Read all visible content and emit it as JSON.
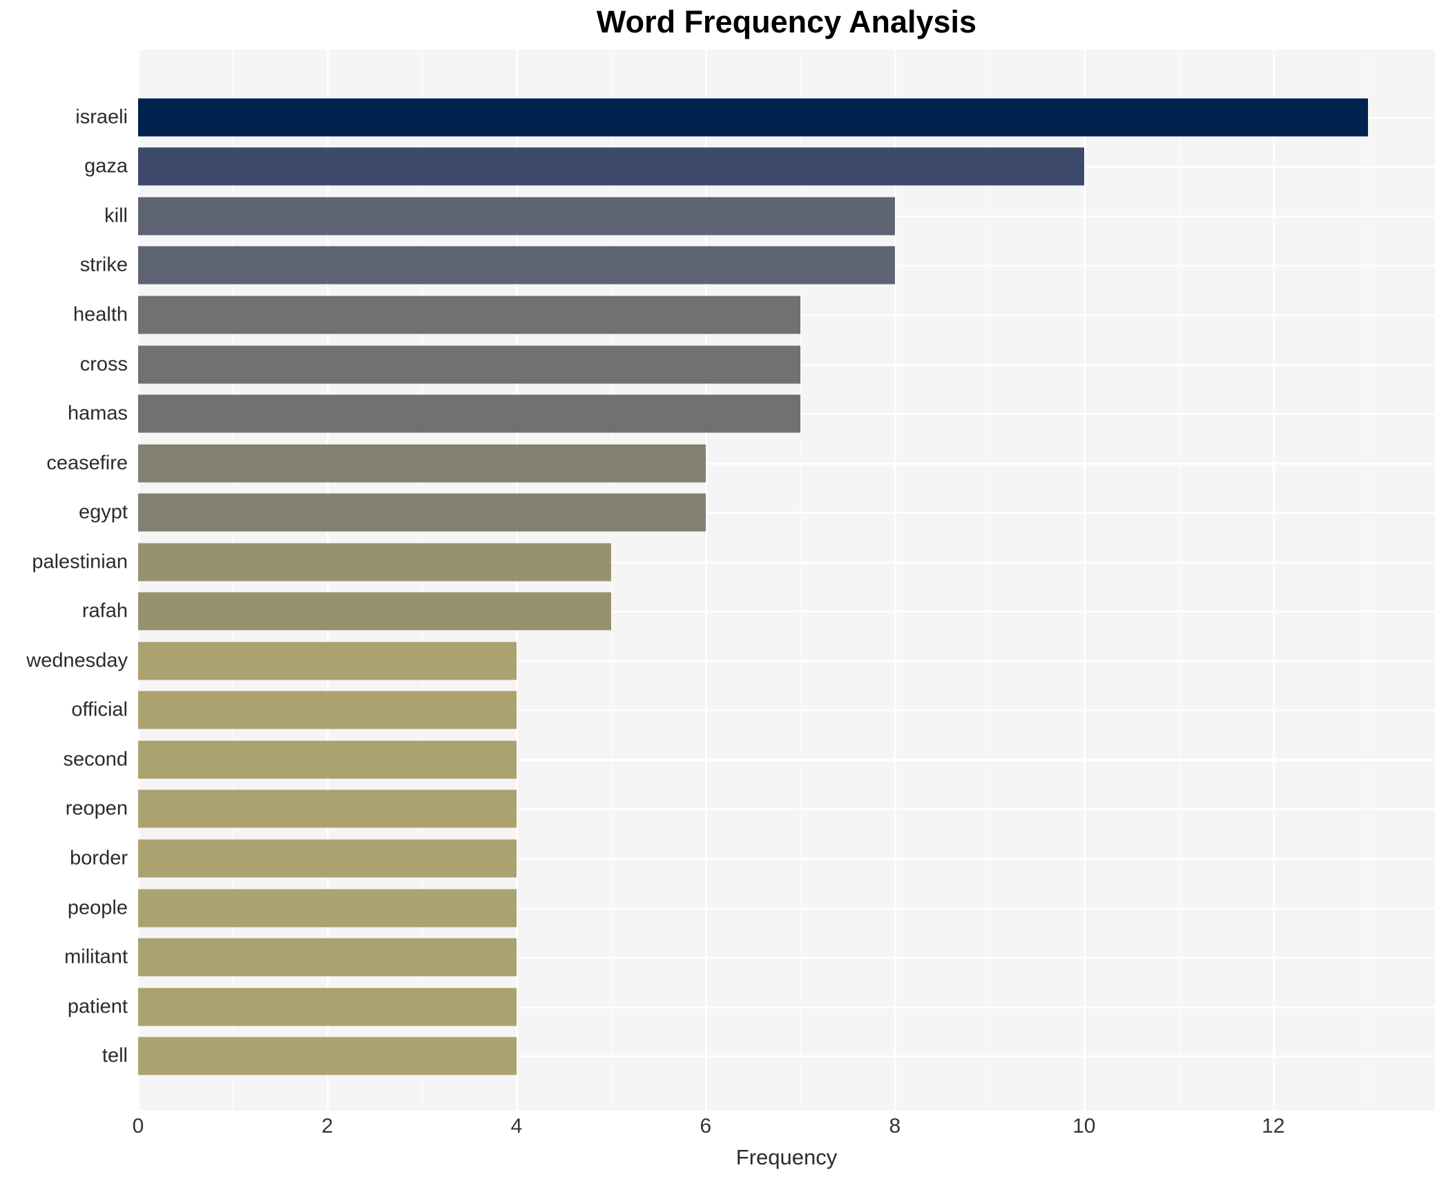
{
  "chart_data": {
    "type": "bar",
    "orientation": "horizontal",
    "title": "Word Frequency Analysis",
    "xlabel": "Frequency",
    "ylabel": "",
    "categories": [
      "israeli",
      "gaza",
      "kill",
      "strike",
      "health",
      "cross",
      "hamas",
      "ceasefire",
      "egypt",
      "palestinian",
      "rafah",
      "wednesday",
      "official",
      "second",
      "reopen",
      "border",
      "people",
      "militant",
      "patient",
      "tell"
    ],
    "values": [
      13,
      10,
      8,
      8,
      7,
      7,
      7,
      6,
      6,
      5,
      5,
      4,
      4,
      4,
      4,
      4,
      4,
      4,
      4,
      4
    ],
    "bar_colors": [
      "#00224e",
      "#3e4a6c",
      "#5e6473",
      "#5e6473",
      "#717171",
      "#717171",
      "#717171",
      "#838073",
      "#838073",
      "#989170",
      "#989170",
      "#aca26f",
      "#aca26f",
      "#aca26f",
      "#aca26f",
      "#aca26f",
      "#aca26f",
      "#aca26f",
      "#aca26f",
      "#aca26f"
    ],
    "x_ticks": [
      0,
      2,
      4,
      6,
      8,
      10,
      12
    ],
    "x_minor_ticks": [
      1,
      3,
      5,
      7,
      9,
      11,
      13
    ],
    "xlim": [
      0,
      13.71
    ],
    "grid": true,
    "legend": "none",
    "plot_background": "#f5f5f6",
    "grid_color": "#ffffff",
    "figure_background": "#ffffff"
  }
}
